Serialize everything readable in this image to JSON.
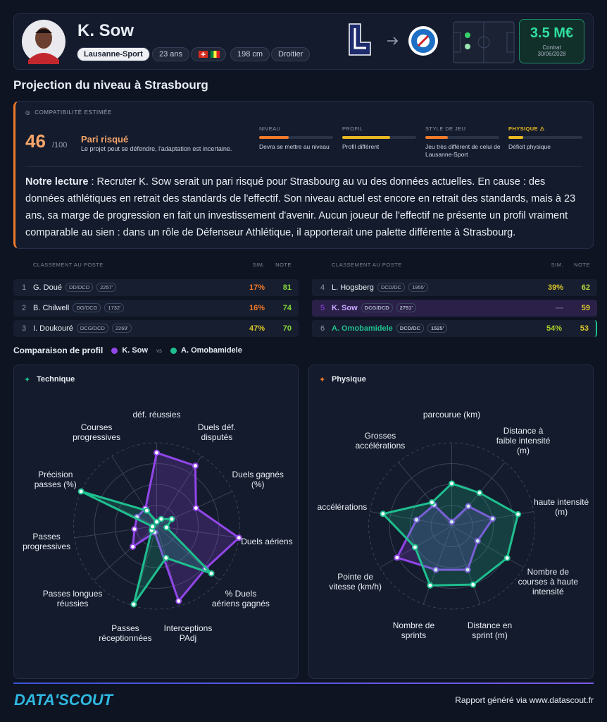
{
  "header": {
    "name": "K. Sow",
    "club": "Lausanne-Sport",
    "age": "23 ans",
    "height": "198 cm",
    "foot": "Droitier",
    "value": "3.5 M€",
    "contract_label": "Contrat",
    "contract_date": "30/06/2028"
  },
  "section_title": "Projection du niveau à Strasbourg",
  "compat": {
    "label": "COMPATIBILITÉ ESTIMÉE",
    "score": 46,
    "score_max": "/100",
    "verdict": "Pari risqué",
    "verdict_desc": "Le projet peut se défendre, l'adaptation est incertaine.",
    "criteria": [
      {
        "label": "NIVEAU",
        "text": "Devra se mettre au niveau",
        "bar": 40,
        "color": "#f07a2a"
      },
      {
        "label": "PROFIL",
        "text": "Profil différent",
        "bar": 65,
        "color": "#e8b820"
      },
      {
        "label": "STYLE DE JEU",
        "text": "Jeu très différent de celui de Lausanne-Sport",
        "bar": 30,
        "color": "#f07a2a"
      },
      {
        "label": "PHYSIQUE ⚠",
        "text": "Déficit physique",
        "bar": 20,
        "color": "#e8b820"
      }
    ],
    "reading_lead": "Notre lecture",
    "reading_text": ": Recruter K. Sow serait un pari risqué pour Strasbourg au vu des données actuelles. En cause : des données athlétiques en retrait des standards de l'effectif. Son niveau actuel est encore en retrait des standards, mais à 23 ans, sa marge de progression en fait un investissement d'avenir. Aucun joueur de l'effectif ne présente un profil vraiment comparable au sien : dans un rôle de Défenseur Athlétique, il apporterait une palette différente à Strasbourg."
  },
  "rankings": [
    {
      "title": "CLASSEMENT AU POSTE",
      "sim": "SIM.",
      "note": "NOTE",
      "rows": [
        {
          "rank": "1",
          "name": "G. Doué",
          "pos": "DD/DCD",
          "elo": "2257'",
          "sim": "17%",
          "note": 81
        },
        {
          "rank": "2",
          "name": "B. Chilwell",
          "pos": "DG/DCG",
          "elo": "1732'",
          "sim": "16%",
          "note": 74
        },
        {
          "rank": "3",
          "name": "I. Doukouré",
          "pos": "DCG/DCD",
          "elo": "2269'",
          "sim": "47%",
          "note": 70
        }
      ]
    },
    {
      "title": "CLASSEMENT AU POSTE",
      "sim": "SIM.",
      "note": "NOTE",
      "rows": [
        {
          "rank": "4",
          "name": "L. Hogsberg",
          "pos": "DCD/DC",
          "elo": "1955'",
          "sim": "39%",
          "note": 62
        },
        {
          "rank": "5",
          "name": "K. Sow",
          "pos": "DCG/DCD",
          "elo": "2751'",
          "sim": "—",
          "note": 59
        },
        {
          "rank": "6",
          "name": "A. Omobamidele",
          "pos": "DCD/DC",
          "elo": "1525'",
          "sim": "54%",
          "note": 53
        }
      ]
    }
  ],
  "comparison": {
    "title": "Comparaison de profil",
    "vs": "vs"
  },
  "chart_data": [
    {
      "type": "radar",
      "title": "Technique",
      "rlim": [
        0,
        100
      ],
      "categories": [
        "déf. réussies",
        "Duels déf. disputés",
        "Duels gagnés (%)",
        "Duels aériens",
        "% Duels aériens gagnés",
        "Interceptions PAdj",
        "Passes réceptionnées",
        "Passes longues réussies",
        "Passes progressives",
        "Précision passes (%)",
        "Courses progressives"
      ],
      "series": [
        {
          "name": "K. Sow",
          "color": "#9146e8",
          "values": [
            88,
            86,
            52,
            100,
            78,
            94,
            8,
            38,
            27,
            26,
            25
          ]
        },
        {
          "name": "A. Omobamidele",
          "color": "#1fbf8f",
          "values": [
            5,
            10,
            20,
            12,
            87,
            40,
            98,
            8,
            5,
            100,
            22
          ]
        }
      ]
    },
    {
      "type": "radar",
      "title": "Physique",
      "rlim": [
        0,
        100
      ],
      "categories": [
        "parcourue (km)",
        "Distance à faible intensité (m)",
        "haute intensité (m)",
        "Nombre de courses à haute intensité",
        "Distance en sprint (m)",
        "Nombre de sprints",
        "Pointe de vitesse (km/h)",
        "accélérations",
        "Grosses accélérations"
      ],
      "series": [
        {
          "name": "K. Sow",
          "color": "#9146e8",
          "values": [
            5,
            31,
            50,
            36,
            56,
            56,
            76,
            43,
            33
          ]
        },
        {
          "name": "A. Omobamidele",
          "color": "#1fbf8f",
          "values": [
            51,
            52,
            81,
            77,
            75,
            76,
            51,
            84,
            37
          ]
        }
      ]
    }
  ],
  "footer": {
    "brand": "DATA'SCOUT",
    "note": "Rapport généré via www.datascout.fr"
  }
}
